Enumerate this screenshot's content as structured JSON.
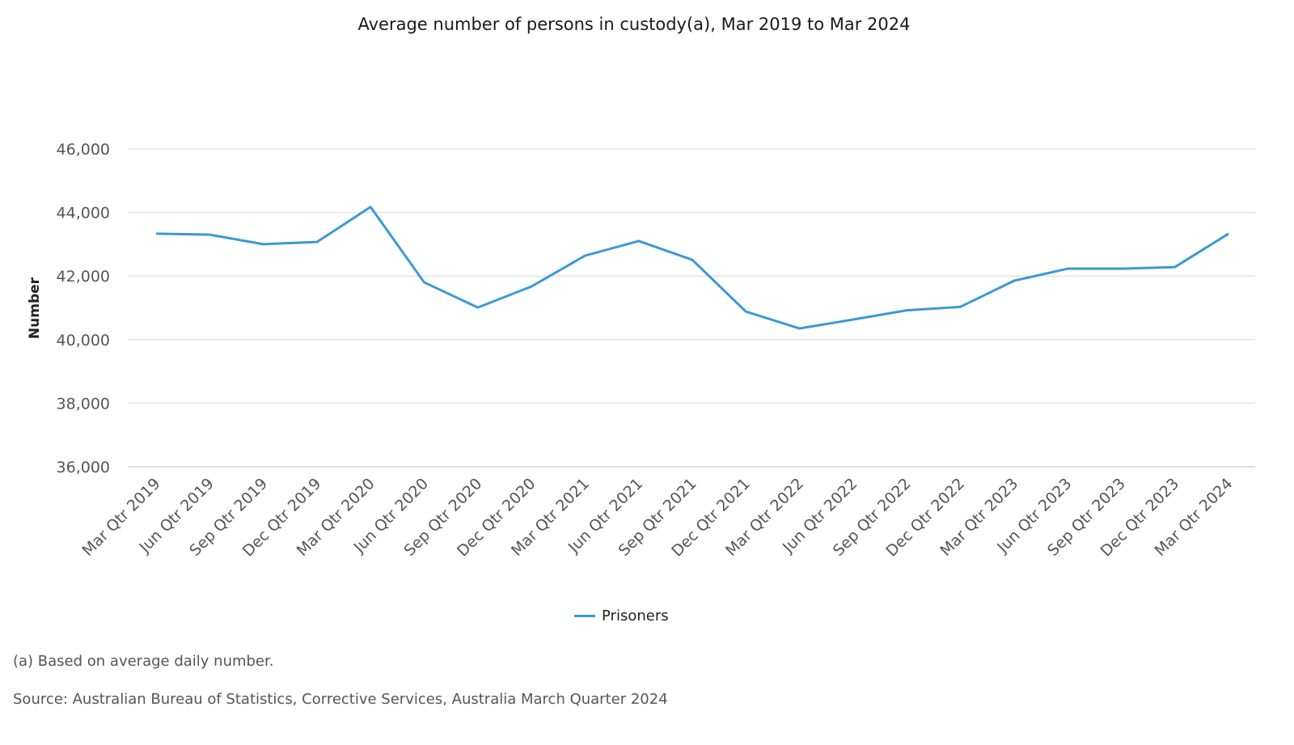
{
  "chart_data": {
    "type": "line",
    "title": "Average number of persons in custody(a), Mar 2019 to Mar 2024",
    "xlabel": "",
    "ylabel": "Number",
    "ylim": [
      36000,
      46000
    ],
    "yticks": [
      36000,
      38000,
      40000,
      42000,
      44000,
      46000
    ],
    "ytick_labels": [
      "36,000",
      "38,000",
      "40,000",
      "42,000",
      "44,000",
      "46,000"
    ],
    "grid": true,
    "legend_position": "bottom",
    "categories": [
      "Mar Qtr 2019",
      "Jun Qtr 2019",
      "Sep Qtr 2019",
      "Dec Qtr 2019",
      "Mar Qtr 2020",
      "Jun Qtr 2020",
      "Sep Qtr 2020",
      "Dec Qtr 2020",
      "Mar Qtr 2021",
      "Jun Qtr 2021",
      "Sep Qtr 2021",
      "Dec Qtr 2021",
      "Mar Qtr 2022",
      "Jun Qtr 2022",
      "Sep Qtr 2022",
      "Dec Qtr 2022",
      "Mar Qtr 2023",
      "Jun Qtr 2023",
      "Sep Qtr 2023",
      "Dec Qtr 2023",
      "Mar Qtr 2024"
    ],
    "series": [
      {
        "name": "Prisoners",
        "color": "#3a9ad4",
        "values": [
          43330,
          43300,
          43000,
          43070,
          44170,
          41800,
          41010,
          41670,
          42640,
          43100,
          42510,
          40880,
          40350,
          40630,
          40920,
          41030,
          41850,
          42230,
          42230,
          42280,
          43330
        ]
      }
    ]
  },
  "footnote": "(a) Based on average daily number.",
  "source": "Source: Australian Bureau of Statistics, Corrective Services, Australia March Quarter 2024",
  "colors": {
    "grid": "#e3e3e3",
    "baseline": "#c6d4ea",
    "line": "#3a9ad4"
  }
}
